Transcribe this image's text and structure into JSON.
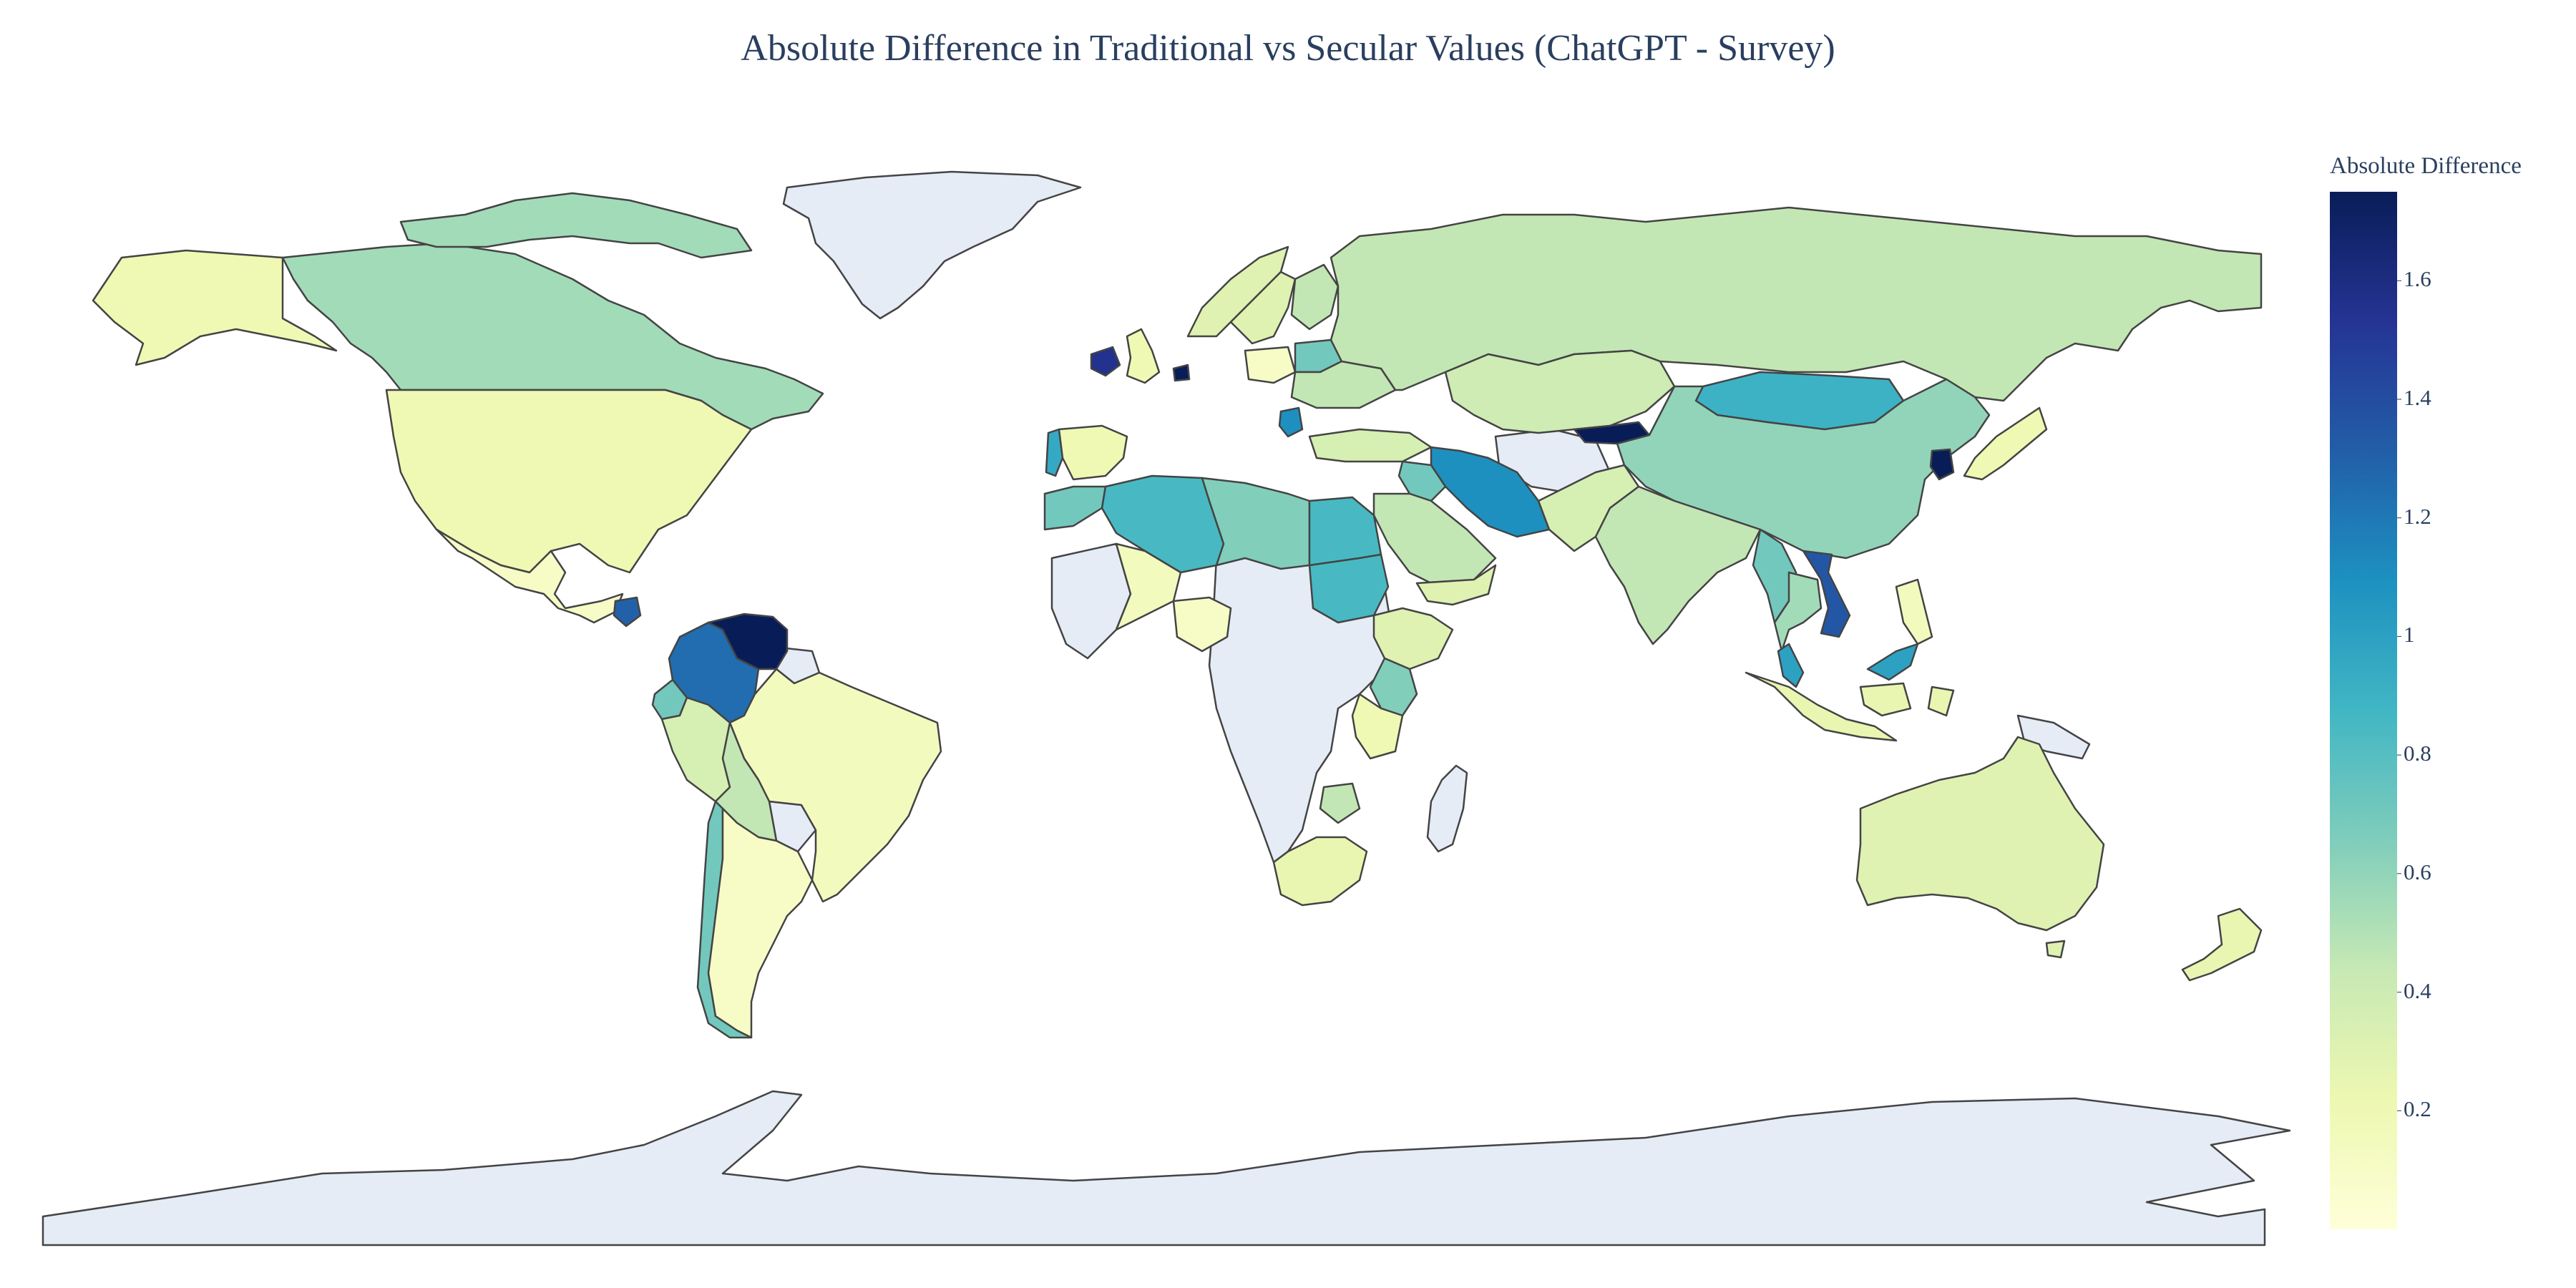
{
  "title": "Absolute Difference in Traditional vs Secular Values (ChatGPT - Survey)",
  "colorbar": {
    "title": "Absolute Difference",
    "ticks": [
      "1.6",
      "1.4",
      "1.2",
      "1",
      "0.8",
      "0.6",
      "0.4",
      "0.2"
    ],
    "tick_values": [
      1.6,
      1.4,
      1.2,
      1.0,
      0.8,
      0.6,
      0.4,
      0.2
    ],
    "range": [
      0,
      1.75
    ],
    "colorscale": [
      "#ffffd9",
      "#edf8b1",
      "#c7e9b4",
      "#7fcdbb",
      "#41b6c4",
      "#1d91c0",
      "#225ea8",
      "#253494",
      "#081d58"
    ]
  },
  "colors": {
    "no_data": "#e5ecf6",
    "border": "#444444",
    "title": "#2a3f5f"
  },
  "chart_data": {
    "type": "choropleth",
    "projection": "equirectangular",
    "z_label": "Absolute Difference",
    "regions": [
      {
        "name": "Canada",
        "value": 0.55
      },
      {
        "name": "United States",
        "value": 0.2
      },
      {
        "name": "Mexico",
        "value": 0.1
      },
      {
        "name": "Guatemala",
        "value": 1.3
      },
      {
        "name": "Colombia",
        "value": 1.25
      },
      {
        "name": "Venezuela",
        "value": 1.75
      },
      {
        "name": "Ecuador",
        "value": 0.7
      },
      {
        "name": "Peru",
        "value": 0.35
      },
      {
        "name": "Bolivia",
        "value": 0.45
      },
      {
        "name": "Brazil",
        "value": 0.15
      },
      {
        "name": "Chile",
        "value": 0.7
      },
      {
        "name": "Argentina",
        "value": 0.1
      },
      {
        "name": "Portugal",
        "value": 0.95
      },
      {
        "name": "United Kingdom",
        "value": 0.2
      },
      {
        "name": "Ireland",
        "value": 1.55
      },
      {
        "name": "Netherlands",
        "value": 1.75
      },
      {
        "name": "Norway",
        "value": 0.3
      },
      {
        "name": "Sweden",
        "value": 0.3
      },
      {
        "name": "Finland",
        "value": 0.45
      },
      {
        "name": "Poland",
        "value": 0.1
      },
      {
        "name": "Belarus",
        "value": 0.7
      },
      {
        "name": "Ukraine",
        "value": 0.45
      },
      {
        "name": "Serbia",
        "value": 1.1
      },
      {
        "name": "Russia",
        "value": 0.45
      },
      {
        "name": "Kazakhstan",
        "value": 0.4
      },
      {
        "name": "Mongolia",
        "value": 0.9
      },
      {
        "name": "China",
        "value": 0.6
      },
      {
        "name": "South Korea",
        "value": 1.75
      },
      {
        "name": "Japan",
        "value": 0.2
      },
      {
        "name": "Kyrgyzstan",
        "value": 1.75
      },
      {
        "name": "Iran",
        "value": 1.1
      },
      {
        "name": "Turkey",
        "value": 0.35
      },
      {
        "name": "Iraq",
        "value": 0.7
      },
      {
        "name": "Saudi Arabia",
        "value": 0.45
      },
      {
        "name": "Yemen",
        "value": 0.3
      },
      {
        "name": "India",
        "value": 0.45
      },
      {
        "name": "Pakistan",
        "value": 0.35
      },
      {
        "name": "Myanmar",
        "value": 0.7
      },
      {
        "name": "Thailand",
        "value": 0.55
      },
      {
        "name": "Vietnam",
        "value": 1.35
      },
      {
        "name": "Malaysia",
        "value": 1.0
      },
      {
        "name": "Indonesia",
        "value": 0.25
      },
      {
        "name": "Philippines",
        "value": 0.15
      },
      {
        "name": "Morocco",
        "value": 0.7
      },
      {
        "name": "Algeria",
        "value": 0.85
      },
      {
        "name": "Libya",
        "value": 0.65
      },
      {
        "name": "Egypt",
        "value": 0.85
      },
      {
        "name": "Mali",
        "value": 0.15
      },
      {
        "name": "Nigeria",
        "value": 0.1
      },
      {
        "name": "Ethiopia",
        "value": 0.3
      },
      {
        "name": "Kenya",
        "value": 0.65
      },
      {
        "name": "Tanzania",
        "value": 0.2
      },
      {
        "name": "Zimbabwe",
        "value": 0.45
      },
      {
        "name": "South Africa",
        "value": 0.25
      },
      {
        "name": "Australia",
        "value": 0.3
      },
      {
        "name": "New Zealand",
        "value": 0.25
      }
    ]
  }
}
